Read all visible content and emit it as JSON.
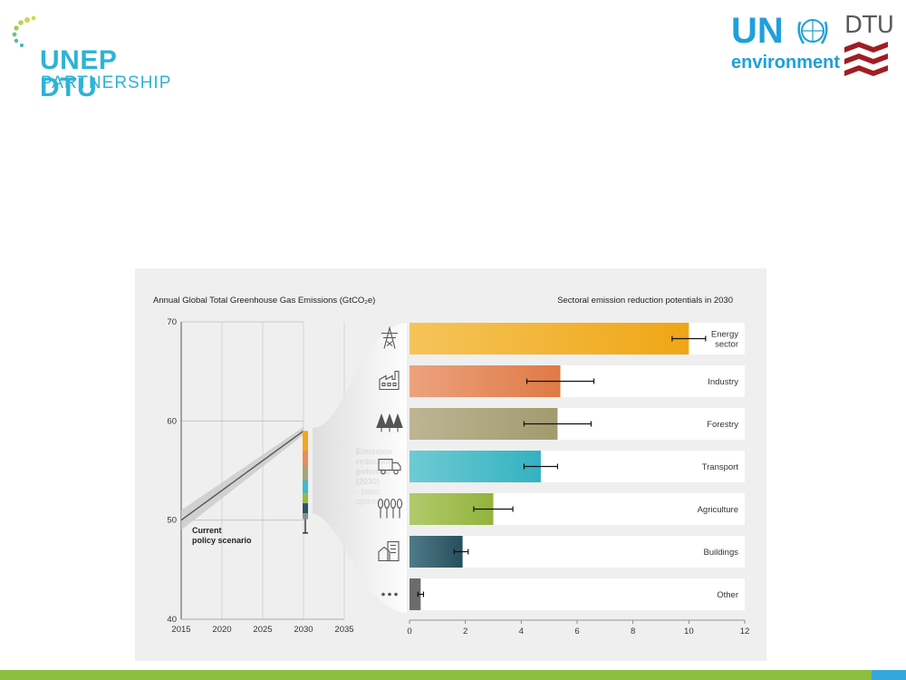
{
  "logos": {
    "left_title": "UNEP DTU",
    "left_subtitle": "PARTNERSHIP",
    "un_text": "UN",
    "environment_text": "environment",
    "dtu_text": "DTU"
  },
  "colors": {
    "brand_blue": "#2eb3d6",
    "un_blue": "#1fa0d9",
    "dtu_red": "#a01d24",
    "bottom_bar_green": "#8cbe3f",
    "bottom_bar_blue": "#35a7dd"
  },
  "chart_data": [
    {
      "type": "line",
      "title": "Annual Global Total Greenhouse Gas Emissions (GtCO₂e)",
      "x_ticks": [
        "2015",
        "2020",
        "2025",
        "2030",
        "2035"
      ],
      "y_ticks": [
        "70",
        "60",
        "50",
        "40"
      ],
      "xlim": [
        2015,
        2035
      ],
      "ylim": [
        40,
        70
      ],
      "grid": "horizontal and vertical",
      "series": [
        {
          "name": "Current policy scenario",
          "x": [
            2015,
            2030
          ],
          "y": [
            50,
            59
          ],
          "band_lower": [
            49,
            58.6
          ],
          "band_upper": [
            51,
            59.4
          ]
        }
      ],
      "series_label": [
        "Current",
        "policy scenario"
      ],
      "reduction_stack": {
        "x": 2030,
        "top": 59,
        "segments": [
          {
            "sector": "Energy sector",
            "value": 2.0,
            "color": "#f0a821"
          },
          {
            "sector": "Industry",
            "value": 1.5,
            "color": "#e88d5a"
          },
          {
            "sector": "Forestry",
            "value": 1.5,
            "color": "#a9a278"
          },
          {
            "sector": "Transport",
            "value": 1.3,
            "color": "#43b9c6"
          },
          {
            "sector": "Agriculture",
            "value": 1.0,
            "color": "#96b845"
          },
          {
            "sector": "Buildings",
            "value": 1.0,
            "color": "#2d5563"
          },
          {
            "sector": "Other",
            "value": 0.6,
            "color": "#8c8c8c"
          }
        ],
        "error_low": 48.7,
        "label": [
          "Emission",
          "reduction",
          "potential",
          "(2030)",
          "- basic",
          "options"
        ]
      }
    },
    {
      "type": "bar",
      "orientation": "horizontal",
      "title": "Sectoral emission reduction potentials in 2030",
      "xlim": [
        0,
        12
      ],
      "x_ticks": [
        "0",
        "2",
        "4",
        "6",
        "8",
        "10",
        "12"
      ],
      "categories": [
        {
          "label": [
            "Energy",
            "sector"
          ],
          "value": 10.0,
          "err_low": 9.4,
          "err_high": 10.6,
          "color_start": "#f5c45a",
          "color_end": "#efa615",
          "icon": "power-pylon-icon"
        },
        {
          "label": [
            "Industry"
          ],
          "value": 5.4,
          "err_low": 4.2,
          "err_high": 6.6,
          "color_start": "#eda27f",
          "color_end": "#de7a45",
          "icon": "factory-icon"
        },
        {
          "label": [
            "Forestry"
          ],
          "value": 5.3,
          "err_low": 4.1,
          "err_high": 6.5,
          "color_start": "#bdb593",
          "color_end": "#a29b6e",
          "icon": "trees-icon"
        },
        {
          "label": [
            "Transport"
          ],
          "value": 4.7,
          "err_low": 4.1,
          "err_high": 5.3,
          "color_start": "#6fcad3",
          "color_end": "#33b2c1",
          "icon": "truck-icon"
        },
        {
          "label": [
            "Agriculture"
          ],
          "value": 3.0,
          "err_low": 2.3,
          "err_high": 3.7,
          "color_start": "#b2c96d",
          "color_end": "#92b43c",
          "icon": "wheat-icon"
        },
        {
          "label": [
            "Buildings"
          ],
          "value": 1.9,
          "err_low": 1.6,
          "err_high": 2.1,
          "color_start": "#4f7b88",
          "color_end": "#284e5c",
          "icon": "building-icon"
        },
        {
          "label": [
            "Other"
          ],
          "value": 0.4,
          "err_low": 0.3,
          "err_high": 0.5,
          "color_start": "#6c6c6c",
          "color_end": "#6c6c6c",
          "icon": "more-dots-icon"
        }
      ]
    }
  ]
}
